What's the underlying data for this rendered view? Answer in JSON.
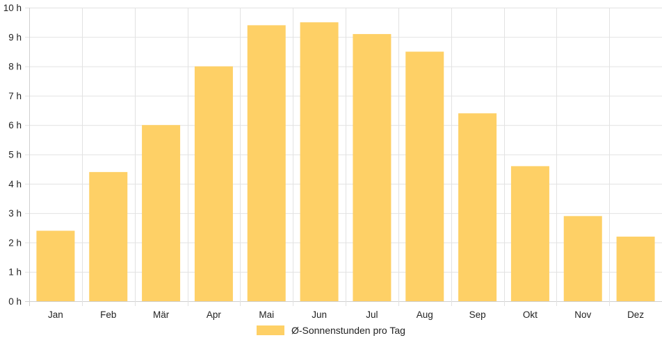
{
  "chart_data": {
    "type": "bar",
    "categories": [
      "Jan",
      "Feb",
      "Mär",
      "Apr",
      "Mai",
      "Jun",
      "Jul",
      "Aug",
      "Sep",
      "Okt",
      "Nov",
      "Dez"
    ],
    "series": [
      {
        "name": "Ø-Sonnenstunden pro Tag",
        "values": [
          2.4,
          4.4,
          6.0,
          8.0,
          9.4,
          9.5,
          9.1,
          8.5,
          6.4,
          4.6,
          2.9,
          2.2
        ]
      }
    ],
    "ylim": [
      0,
      10
    ],
    "yticks": [
      0,
      1,
      2,
      3,
      4,
      5,
      6,
      7,
      8,
      9,
      10
    ],
    "ytick_suffix": " h",
    "grid": true,
    "legend": "bottom",
    "colors": {
      "bar": "#fed066",
      "grid": "#e2e2e2",
      "axis": "#cfcfcf"
    }
  }
}
